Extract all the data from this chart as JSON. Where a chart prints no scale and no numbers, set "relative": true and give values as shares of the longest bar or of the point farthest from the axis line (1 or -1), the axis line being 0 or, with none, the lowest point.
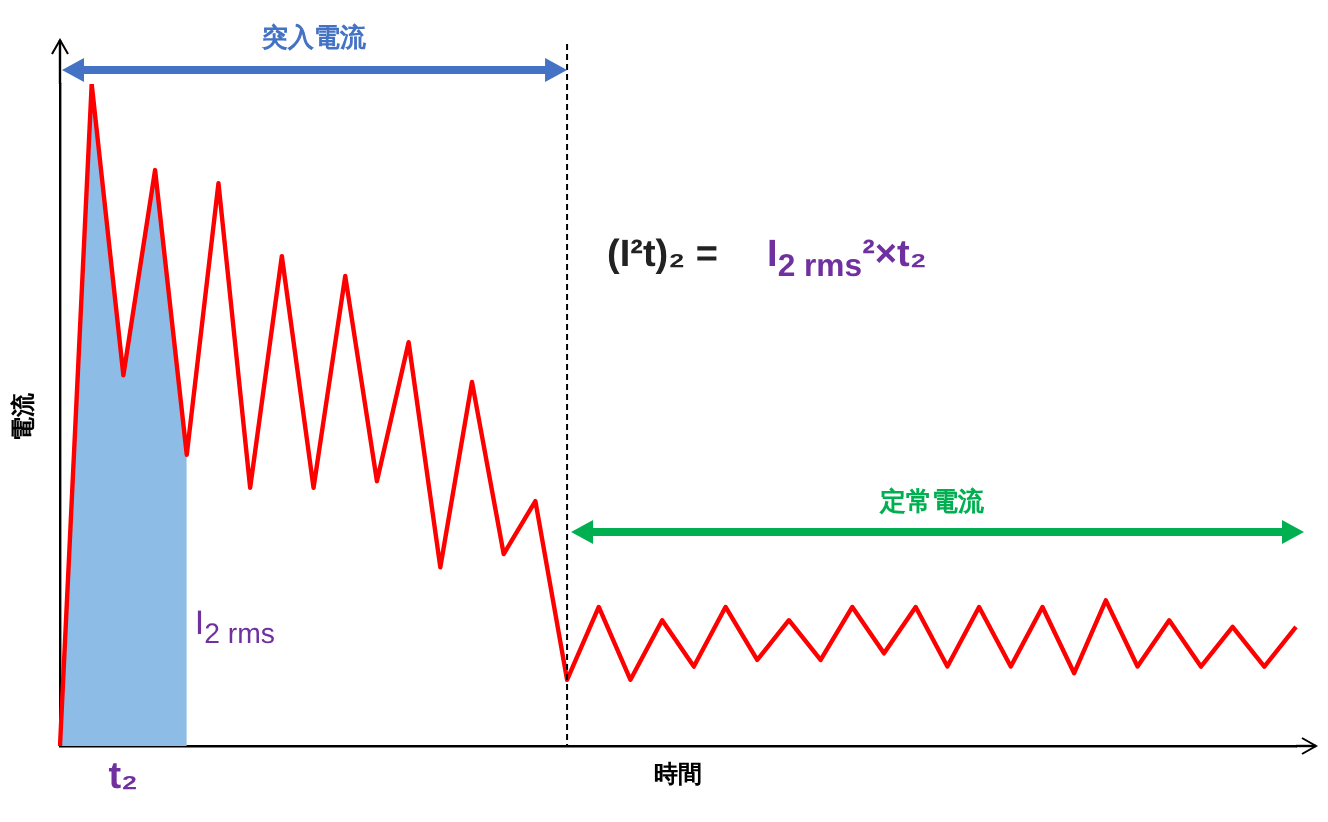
{
  "chart_data": {
    "type": "line",
    "relative": true,
    "categories": [
      null,
      null,
      null,
      null,
      null,
      null,
      null,
      null,
      null,
      null,
      null,
      null,
      null,
      null,
      null,
      null,
      null,
      null,
      null,
      null,
      null,
      null,
      null,
      null,
      null,
      null,
      null,
      null,
      null,
      null,
      null,
      null,
      null,
      null,
      null,
      null,
      null,
      null,
      null,
      null
    ],
    "series": [
      {
        "type": "area",
        "color": "#8dbde6",
        "values": [
          0,
          1,
          0.56,
          0.87,
          0.44,
          null,
          null,
          null,
          null,
          null,
          null,
          null,
          null,
          null,
          null,
          null,
          null,
          null,
          null,
          null,
          null,
          null,
          null,
          null,
          null,
          null,
          null,
          null,
          null,
          null,
          null,
          null,
          null,
          null,
          null,
          null,
          null,
          null,
          null,
          null
        ]
      },
      {
        "color": "#ff0000",
        "values": [
          0,
          1,
          0.56,
          0.87,
          0.44,
          0.85,
          0.39,
          0.74,
          0.39,
          0.71,
          0.4,
          0.61,
          0.27,
          0.55,
          0.29,
          0.37,
          0.1,
          0.21,
          0.1,
          0.19,
          0.12,
          0.21,
          0.13,
          0.19,
          0.13,
          0.21,
          0.14,
          0.21,
          0.12,
          0.21,
          0.12,
          0.21,
          0.11,
          0.22,
          0.12,
          0.19,
          0.12,
          0.18,
          0.12,
          0.18
        ]
      }
    ],
    "xlabel": "時間",
    "ylabel": "電流",
    "annotations": [
      "突入電流",
      "定常電流",
      "(I²t)₂ =",
      "I$_{2 rms}$²×t₂",
      "I$_{2 rms}$",
      "t₂"
    ],
    "grid": false,
    "legend": false,
    "marker": "none"
  }
}
